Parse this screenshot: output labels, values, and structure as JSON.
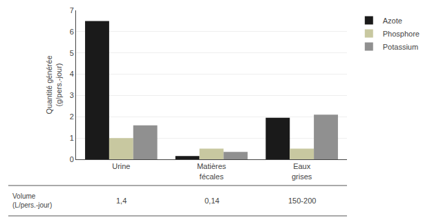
{
  "chart_data": {
    "type": "bar",
    "categories": [
      "Urine",
      "Matières\nfécales",
      "Eaux\ngrises"
    ],
    "series": [
      {
        "name": "Azote",
        "color": "#1a1a1a",
        "values": [
          6.5,
          0.15,
          1.95
        ]
      },
      {
        "name": "Phosphore",
        "color": "#c8c8a0",
        "values": [
          1.0,
          0.5,
          0.5
        ]
      },
      {
        "name": "Potassium",
        "color": "#909090",
        "values": [
          1.6,
          0.35,
          2.1
        ]
      }
    ],
    "ylabel": "Quantité générée\n(g/pers.-jour)",
    "ylim": [
      0,
      7
    ],
    "yticks": [
      0,
      1,
      2,
      3,
      4,
      5,
      6,
      7
    ],
    "grid": true,
    "legend": "right",
    "annotations": [
      {
        "text": "Volume\n(L/pers.-jour)"
      },
      {
        "category": "Urine",
        "text": "1,4"
      },
      {
        "category": "Matières\nfécales",
        "text": "0,14"
      },
      {
        "category": "Eaux\ngrises",
        "text": "150-200"
      }
    ]
  }
}
